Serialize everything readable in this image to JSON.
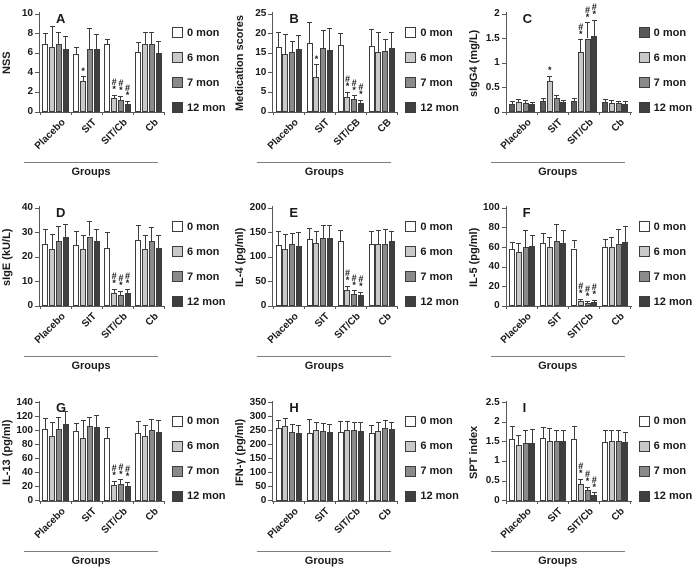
{
  "figure": {
    "background": "#ffffff"
  },
  "palette": {
    "mon0": "#ffffff",
    "mon0_dark": "#595959",
    "mon6": "#c9c9c9",
    "mon7": "#8a8a8a",
    "mon12": "#3f3f3f",
    "axis": "#595959",
    "error_bar": "#3d3d3d",
    "text": "#1a1a1a"
  },
  "chart_data": [
    {
      "panel": "A",
      "type": "bar",
      "ylabel": "NSS",
      "xlabel": "Groups",
      "ylim": [
        0,
        10
      ],
      "yticks": [
        0,
        2,
        4,
        6,
        8,
        10
      ],
      "categories": [
        "Placebo",
        "SIT",
        "SIT/Cb",
        "Cb"
      ],
      "legend_position": "right",
      "grid": false,
      "series": [
        {
          "name": "0 mon",
          "color": "#ffffff",
          "values": [
            6.9,
            5.9,
            6.9,
            6.1
          ],
          "errors": [
            1.1,
            0.7,
            0.5,
            1.0
          ],
          "marks": [
            "",
            "",
            "",
            ""
          ]
        },
        {
          "name": "6 mon",
          "color": "#c9c9c9",
          "values": [
            6.6,
            3.2,
            1.4,
            6.9
          ],
          "errors": [
            2.1,
            0.4,
            0.3,
            1.2
          ],
          "marks": [
            "",
            "*",
            "#*",
            ""
          ]
        },
        {
          "name": "7 mon",
          "color": "#8a8a8a",
          "values": [
            6.9,
            6.4,
            1.2,
            6.9
          ],
          "errors": [
            1.2,
            2.1,
            0.4,
            1.2
          ],
          "marks": [
            "",
            "",
            "#*",
            ""
          ]
        },
        {
          "name": "12 mon",
          "color": "#3f3f3f",
          "values": [
            6.4,
            6.4,
            0.8,
            6.0
          ],
          "errors": [
            1.3,
            1.5,
            0.3,
            1.2
          ],
          "marks": [
            "",
            "",
            "#*",
            ""
          ]
        }
      ]
    },
    {
      "panel": "B",
      "type": "bar",
      "ylabel": "Medication scores",
      "xlabel": "Groups",
      "ylim": [
        0,
        25
      ],
      "yticks": [
        0,
        5,
        10,
        15,
        20,
        25
      ],
      "categories": [
        "Placebo",
        "SIT",
        "SIT/CB",
        "CB"
      ],
      "legend_position": "right",
      "grid": false,
      "series": [
        {
          "name": "0 mon",
          "color": "#ffffff",
          "values": [
            16.5,
            17.5,
            17.2,
            16.8
          ],
          "errors": [
            3.7,
            5.3,
            2.8,
            4.2
          ],
          "marks": [
            "",
            "",
            "",
            ""
          ]
        },
        {
          "name": "6 mon",
          "color": "#c9c9c9",
          "values": [
            14.8,
            9.0,
            3.8,
            15.4
          ],
          "errors": [
            5.0,
            3.0,
            1.2,
            4.8
          ],
          "marks": [
            "",
            "*",
            "#*",
            ""
          ]
        },
        {
          "name": "7 mon",
          "color": "#8a8a8a",
          "values": [
            15.3,
            16.2,
            3.2,
            15.5
          ],
          "errors": [
            2.7,
            4.6,
            1.0,
            3.0
          ],
          "marks": [
            "",
            "",
            "#*",
            ""
          ]
        },
        {
          "name": "12 mon",
          "color": "#3f3f3f",
          "values": [
            16.0,
            15.7,
            2.2,
            16.2
          ],
          "errors": [
            3.5,
            5.5,
            0.8,
            4.1
          ],
          "marks": [
            "",
            "",
            "#*",
            ""
          ]
        }
      ]
    },
    {
      "panel": "C",
      "type": "bar",
      "ylabel": "sIgG4 (mg/L)",
      "xlabel": "Groups",
      "ylim": [
        0,
        2
      ],
      "yticks": [
        0,
        0.5,
        1,
        1.5,
        2
      ],
      "categories": [
        "Placebo",
        "SIT",
        "SIT/Cb",
        "Cb"
      ],
      "legend_position": "right",
      "grid": false,
      "series": [
        {
          "name": "0 mon",
          "color": "#595959",
          "values": [
            0.17,
            0.22,
            0.22,
            0.21
          ],
          "errors": [
            0.05,
            0.05,
            0.05,
            0.04
          ],
          "marks": [
            "",
            "",
            "",
            ""
          ]
        },
        {
          "name": "6 mon",
          "color": "#c9c9c9",
          "values": [
            0.2,
            0.63,
            1.23,
            0.19
          ],
          "errors": [
            0.05,
            0.1,
            0.24,
            0.04
          ],
          "marks": [
            "",
            "*",
            "#*",
            ""
          ]
        },
        {
          "name": "7 mon",
          "color": "#8a8a8a",
          "values": [
            0.19,
            0.28,
            1.5,
            0.18
          ],
          "errors": [
            0.05,
            0.06,
            0.32,
            0.04
          ],
          "marks": [
            "",
            "",
            "#*",
            ""
          ]
        },
        {
          "name": "12 mon",
          "color": "#3f3f3f",
          "values": [
            0.16,
            0.2,
            1.55,
            0.17
          ],
          "errors": [
            0.04,
            0.04,
            0.32,
            0.04
          ],
          "marks": [
            "",
            "",
            "#*",
            ""
          ]
        }
      ]
    },
    {
      "panel": "D",
      "type": "bar",
      "ylabel": "sIgE (kU/L)",
      "xlabel": "Groups",
      "ylim": [
        0,
        40
      ],
      "yticks": [
        0,
        10,
        20,
        30,
        40
      ],
      "categories": [
        "Placebo",
        "SIT",
        "SIT/Cb",
        "Cb"
      ],
      "legend_position": "right",
      "grid": false,
      "series": [
        {
          "name": "0 mon",
          "color": "#ffffff",
          "values": [
            25.3,
            25.0,
            23.8,
            27.0
          ],
          "errors": [
            6.0,
            5.5,
            6.2,
            6.0
          ],
          "marks": [
            "",
            "",
            "",
            ""
          ]
        },
        {
          "name": "6 mon",
          "color": "#c9c9c9",
          "values": [
            23.5,
            23.5,
            5.5,
            23.5
          ],
          "errors": [
            6.0,
            5.3,
            1.5,
            5.5
          ],
          "marks": [
            "",
            "",
            "#*",
            ""
          ]
        },
        {
          "name": "7 mon",
          "color": "#8a8a8a",
          "values": [
            26.5,
            28.5,
            4.8,
            26.5
          ],
          "errors": [
            6.0,
            6.0,
            1.3,
            5.5
          ],
          "marks": [
            "",
            "",
            "#*",
            ""
          ]
        },
        {
          "name": "12 mon",
          "color": "#3f3f3f",
          "values": [
            28.2,
            26.5,
            5.5,
            23.8
          ],
          "errors": [
            5.3,
            4.7,
            1.5,
            5.2
          ],
          "marks": [
            "",
            "",
            "#*",
            ""
          ]
        }
      ]
    },
    {
      "panel": "E",
      "type": "bar",
      "ylabel": "IL-4 (pg/ml)",
      "xlabel": "Groups",
      "ylim": [
        0,
        200
      ],
      "yticks": [
        0,
        50,
        100,
        150,
        200
      ],
      "categories": [
        "Placebo",
        "SIT",
        "SIT/Cb",
        "Cb"
      ],
      "legend_position": "right",
      "grid": false,
      "series": [
        {
          "name": "0 mon",
          "color": "#ffffff",
          "values": [
            126,
            137,
            134,
            128
          ],
          "errors": [
            27,
            21,
            21,
            24
          ],
          "marks": [
            "",
            "",
            "",
            ""
          ]
        },
        {
          "name": "6 mon",
          "color": "#c9c9c9",
          "values": [
            117,
            130,
            33,
            127
          ],
          "errors": [
            29,
            23,
            8,
            28
          ],
          "marks": [
            "",
            "",
            "#*",
            ""
          ]
        },
        {
          "name": "7 mon",
          "color": "#8a8a8a",
          "values": [
            127,
            140,
            26,
            128
          ],
          "errors": [
            21,
            25,
            6,
            29
          ],
          "marks": [
            "",
            "",
            "#*",
            ""
          ]
        },
        {
          "name": "12 mon",
          "color": "#3f3f3f",
          "values": [
            123,
            139,
            23,
            134
          ],
          "errors": [
            27,
            26,
            6,
            18
          ],
          "marks": [
            "",
            "",
            "#*",
            ""
          ]
        }
      ]
    },
    {
      "panel": "F",
      "type": "bar",
      "ylabel": "IL-5 (pg/ml)",
      "xlabel": "Groups",
      "ylim": [
        0,
        100
      ],
      "yticks": [
        0,
        20,
        40,
        60,
        80,
        100
      ],
      "categories": [
        "Placebo",
        "SIT",
        "SIT/Cb",
        "Cb"
      ],
      "legend_position": "right",
      "grid": false,
      "series": [
        {
          "name": "0 mon",
          "color": "#ffffff",
          "values": [
            58,
            65,
            59,
            61
          ],
          "errors": [
            7,
            9,
            8,
            7
          ],
          "marks": [
            "",
            "",
            "",
            ""
          ]
        },
        {
          "name": "6 mon",
          "color": "#c9c9c9",
          "values": [
            55,
            61,
            5,
            61
          ],
          "errors": [
            9,
            9,
            2,
            9
          ],
          "marks": [
            "",
            "",
            "#*",
            ""
          ]
        },
        {
          "name": "7 mon",
          "color": "#8a8a8a",
          "values": [
            61,
            67,
            3,
            64
          ],
          "errors": [
            16,
            16,
            1.5,
            14
          ],
          "marks": [
            "",
            "",
            "#*",
            ""
          ]
        },
        {
          "name": "12 mon",
          "color": "#3f3f3f",
          "values": [
            62,
            65,
            4,
            66
          ],
          "errors": [
            10,
            12,
            2,
            15
          ],
          "marks": [
            "",
            "",
            "#*",
            ""
          ]
        }
      ]
    },
    {
      "panel": "G",
      "type": "bar",
      "ylabel": "IL-13 (pg/ml)",
      "xlabel": "Groups",
      "ylim": [
        0,
        140
      ],
      "yticks": [
        0,
        20,
        40,
        60,
        80,
        100,
        120,
        140
      ],
      "categories": [
        "Placebo",
        "SIT",
        "SIT/Cb",
        "Cb"
      ],
      "legend_position": "right",
      "grid": false,
      "series": [
        {
          "name": "0 mon",
          "color": "#ffffff",
          "values": [
            102,
            99,
            89,
            96
          ],
          "errors": [
            15,
            11,
            15,
            17
          ],
          "marks": [
            "",
            "",
            "",
            ""
          ]
        },
        {
          "name": "6 mon",
          "color": "#c9c9c9",
          "values": [
            93,
            89,
            22,
            92
          ],
          "errors": [
            19,
            25,
            6,
            15
          ],
          "marks": [
            "",
            "",
            "#*",
            ""
          ]
        },
        {
          "name": "7 mon",
          "color": "#8a8a8a",
          "values": [
            103,
            106,
            24,
            101
          ],
          "errors": [
            16,
            13,
            6,
            15
          ],
          "marks": [
            "",
            "",
            "#*",
            ""
          ]
        },
        {
          "name": "12 mon",
          "color": "#3f3f3f",
          "values": [
            110,
            105,
            21,
            98
          ],
          "errors": [
            17,
            16,
            5,
            17
          ],
          "marks": [
            "",
            "",
            "#*",
            ""
          ]
        }
      ]
    },
    {
      "panel": "H",
      "type": "bar",
      "ylabel": "IFN-γ (pg/ml)",
      "xlabel": "Groups",
      "ylim": [
        0,
        350
      ],
      "yticks": [
        0,
        50,
        100,
        150,
        200,
        250,
        300,
        350
      ],
      "categories": [
        "Placebo",
        "SIT",
        "SIT/Cb",
        "Cb"
      ],
      "legend_position": "right",
      "grid": false,
      "series": [
        {
          "name": "0 mon",
          "color": "#ffffff",
          "values": [
            258,
            241,
            246,
            240
          ],
          "errors": [
            30,
            49,
            37,
            30
          ],
          "marks": [
            "",
            "",
            "",
            ""
          ]
        },
        {
          "name": "6 mon",
          "color": "#c9c9c9",
          "values": [
            268,
            253,
            252,
            247
          ],
          "errors": [
            27,
            27,
            32,
            33
          ],
          "marks": [
            "",
            "",
            "",
            ""
          ]
        },
        {
          "name": "7 mon",
          "color": "#8a8a8a",
          "values": [
            245,
            248,
            254,
            260
          ],
          "errors": [
            28,
            27,
            26,
            25
          ],
          "marks": [
            "",
            "",
            "",
            ""
          ]
        },
        {
          "name": "12 mon",
          "color": "#3f3f3f",
          "values": [
            240,
            244,
            250,
            255
          ],
          "errors": [
            30,
            28,
            28,
            25
          ],
          "marks": [
            "",
            "",
            "",
            ""
          ]
        }
      ]
    },
    {
      "panel": "I",
      "type": "bar",
      "ylabel": "SPT index",
      "xlabel": "Groups",
      "ylim": [
        0,
        2.5
      ],
      "yticks": [
        0,
        0.5,
        1,
        1.5,
        2,
        2.5
      ],
      "categories": [
        "Placebo",
        "SIT",
        "SIT/Cb",
        "Cb"
      ],
      "legend_position": "right",
      "grid": false,
      "series": [
        {
          "name": "0 mon",
          "color": "#ffffff",
          "values": [
            1.57,
            1.6,
            1.57,
            1.5
          ],
          "errors": [
            0.33,
            0.27,
            0.31,
            0.3
          ],
          "marks": [
            "",
            "",
            "",
            ""
          ]
        },
        {
          "name": "6 mon",
          "color": "#c9c9c9",
          "values": [
            1.43,
            1.53,
            0.42,
            1.53
          ],
          "errors": [
            0.22,
            0.32,
            0.12,
            0.27
          ],
          "marks": [
            "",
            "",
            "#*",
            ""
          ]
        },
        {
          "name": "7 mon",
          "color": "#8a8a8a",
          "values": [
            1.47,
            1.52,
            0.26,
            1.52
          ],
          "errors": [
            0.31,
            0.28,
            0.08,
            0.28
          ],
          "marks": [
            "",
            "",
            "#*",
            ""
          ]
        },
        {
          "name": "12 mon",
          "color": "#3f3f3f",
          "values": [
            1.48,
            1.52,
            0.14,
            1.5
          ],
          "errors": [
            0.34,
            0.26,
            0.06,
            0.25
          ],
          "marks": [
            "",
            "",
            "#*",
            ""
          ]
        }
      ]
    }
  ]
}
